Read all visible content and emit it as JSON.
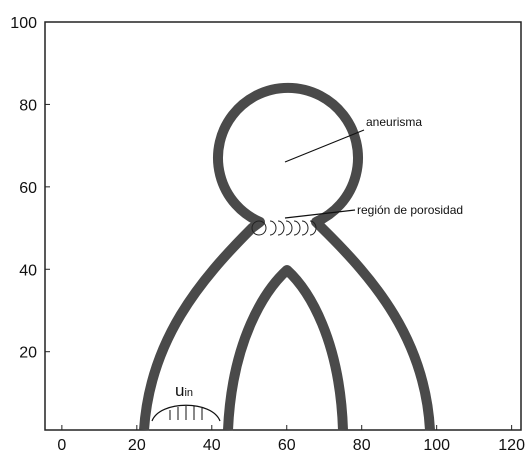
{
  "axes": {
    "xlim": [
      -4.5,
      122.5
    ],
    "ylim": [
      1,
      100
    ],
    "xticks": [
      0,
      20,
      40,
      60,
      80,
      100,
      120
    ],
    "yticks": [
      20,
      40,
      60,
      80,
      100
    ]
  },
  "annotations": {
    "aneurysm": "aneurisma",
    "porosity": "región de porosidad",
    "inlet": "u",
    "inlet_sub": "in"
  }
}
